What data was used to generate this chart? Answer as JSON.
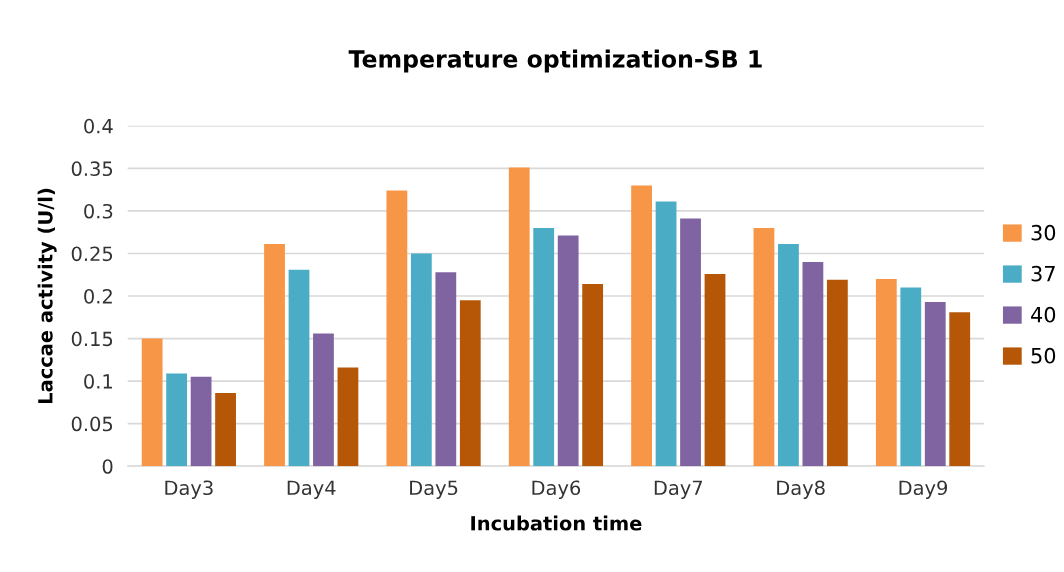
{
  "chart_data": {
    "type": "bar",
    "title": "Temperature optimization-SB 1",
    "xlabel": "Incubation time",
    "ylabel": "Laccae activity (U/l)",
    "categories": [
      "Day3",
      "Day4",
      "Day5",
      "Day6",
      "Day7",
      "Day8",
      "Day9"
    ],
    "series": [
      {
        "name": "30",
        "color": "#f79646",
        "values": [
          0.15,
          0.261,
          0.324,
          0.351,
          0.33,
          0.28,
          0.22
        ]
      },
      {
        "name": "37",
        "color": "#4bacc6",
        "values": [
          0.109,
          0.231,
          0.25,
          0.28,
          0.311,
          0.261,
          0.21
        ]
      },
      {
        "name": "40",
        "color": "#8064a2",
        "values": [
          0.105,
          0.156,
          0.228,
          0.271,
          0.291,
          0.24,
          0.193
        ]
      },
      {
        "name": "50",
        "color": "#b65708",
        "values": [
          0.086,
          0.116,
          0.195,
          0.214,
          0.226,
          0.219,
          0.181
        ]
      }
    ],
    "ylim": [
      0,
      0.4
    ],
    "yticks": [
      {
        "value": 0,
        "label": "0"
      },
      0.05,
      0.1,
      0.15,
      0.2,
      0.25,
      0.3,
      0.35,
      0.4
    ],
    "grid": "y",
    "legend": "right"
  }
}
